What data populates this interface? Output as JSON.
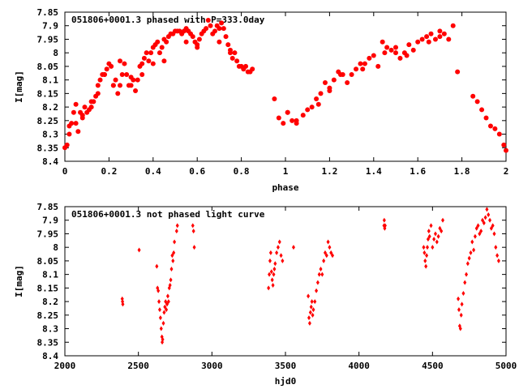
{
  "chart_data": [
    {
      "type": "scatter",
      "title": "051806+0001.3 phased with P=333.0day",
      "xlabel": "phase",
      "ylabel": "I[mag]",
      "xlim": [
        0,
        2
      ],
      "ylim": [
        8.4,
        7.85
      ],
      "y_inverted": true,
      "grid": false,
      "legend": "none",
      "x_ticks": [
        0,
        0.2,
        0.4,
        0.6,
        0.8,
        1,
        1.2,
        1.4,
        1.6,
        1.8,
        2
      ],
      "x_tick_labels": [
        "0",
        "0.2",
        "0.4",
        "0.6",
        "0.8",
        "1",
        "1.2",
        "1.4",
        "1.6",
        "1.8",
        "2"
      ],
      "y_ticks": [
        7.85,
        7.9,
        7.95,
        8,
        8.05,
        8.1,
        8.15,
        8.2,
        8.25,
        8.3,
        8.35,
        8.4
      ],
      "y_tick_labels": [
        "7.85",
        "7.9",
        "7.95",
        "8",
        "8.05",
        "8.1",
        "8.15",
        "8.2",
        "8.25",
        "8.3",
        "8.35",
        "8.4"
      ],
      "color": "#ff0000",
      "marker": "filled-circle",
      "series": [
        {
          "x": [
            0.0,
            0.01,
            0.02,
            0.03,
            0.04,
            0.05,
            0.06,
            0.07,
            0.08,
            0.09,
            0.1,
            0.11,
            0.12,
            0.13,
            0.14,
            0.15,
            0.16,
            0.17,
            0.18,
            0.19,
            0.2,
            0.21,
            0.22,
            0.23,
            0.24,
            0.25,
            0.26,
            0.27,
            0.28,
            0.29,
            0.3,
            0.31,
            0.32,
            0.33,
            0.34,
            0.35,
            0.36,
            0.37,
            0.38,
            0.39,
            0.4,
            0.41,
            0.42,
            0.43,
            0.44,
            0.45,
            0.46,
            0.47,
            0.48,
            0.49,
            0.5,
            0.51,
            0.52,
            0.53,
            0.54,
            0.55,
            0.56,
            0.57,
            0.58,
            0.59,
            0.6,
            0.61,
            0.62,
            0.63,
            0.64,
            0.65,
            0.66,
            0.67,
            0.68,
            0.69,
            0.7,
            0.71,
            0.72,
            0.73,
            0.74,
            0.75,
            0.76,
            0.77,
            0.78,
            0.79,
            0.8,
            0.81,
            0.82,
            0.83,
            0.84,
            0.85,
            0.02,
            0.05,
            0.08,
            0.12,
            0.15,
            0.18,
            0.22,
            0.25,
            0.3,
            0.35,
            0.4,
            0.45,
            0.55,
            0.6,
            0.7,
            0.75,
            0.95,
            0.97,
            0.99,
            1.01,
            1.03,
            1.05,
            1.08,
            1.1,
            1.12,
            1.14,
            1.16,
            1.18,
            1.2,
            1.22,
            1.24,
            1.26,
            1.28,
            1.3,
            1.32,
            1.34,
            1.36,
            1.38,
            1.4,
            1.42,
            1.44,
            1.46,
            1.48,
            1.5,
            1.52,
            1.54,
            1.56,
            1.58,
            1.6,
            1.62,
            1.64,
            1.66,
            1.68,
            1.7,
            1.72,
            1.74,
            1.76,
            1.78,
            1.85,
            1.87,
            1.89,
            1.91,
            1.93,
            1.95,
            1.97,
            1.99,
            2.0,
            1.01,
            1.05,
            1.15,
            1.2,
            1.25,
            1.35,
            1.45,
            1.5,
            1.55,
            1.65,
            1.7
          ],
          "y": [
            8.35,
            8.34,
            8.3,
            8.26,
            8.22,
            8.26,
            8.29,
            8.22,
            8.24,
            8.2,
            8.22,
            8.21,
            8.2,
            8.18,
            8.16,
            8.12,
            8.1,
            8.08,
            8.08,
            8.06,
            8.04,
            8.05,
            8.12,
            8.1,
            8.15,
            8.12,
            8.08,
            8.04,
            8.08,
            8.12,
            8.09,
            8.1,
            8.14,
            8.1,
            8.05,
            8.04,
            8.02,
            8.0,
            8.03,
            8.0,
            7.98,
            7.97,
            7.96,
            8.0,
            7.98,
            7.95,
            7.96,
            7.94,
            7.93,
            7.93,
            7.92,
            7.92,
            7.92,
            7.93,
            7.92,
            7.91,
            7.92,
            7.93,
            7.94,
            7.96,
            7.97,
            7.95,
            7.93,
            7.92,
            7.91,
            7.88,
            7.9,
            7.93,
            7.92,
            7.9,
            7.91,
            7.89,
            7.91,
            7.94,
            7.97,
            8.0,
            8.02,
            8.0,
            8.03,
            8.05,
            8.05,
            8.06,
            8.05,
            8.07,
            8.07,
            8.06,
            8.27,
            8.19,
            8.23,
            8.18,
            8.15,
            8.08,
            8.12,
            8.03,
            8.12,
            8.08,
            8.04,
            8.03,
            7.96,
            7.98,
            7.96,
            7.99,
            8.17,
            8.24,
            8.26,
            8.22,
            8.25,
            8.26,
            8.23,
            8.21,
            8.2,
            8.17,
            8.15,
            8.11,
            8.13,
            8.1,
            8.07,
            8.08,
            8.11,
            8.08,
            8.06,
            8.04,
            8.04,
            8.02,
            8.01,
            8.05,
            7.96,
            7.98,
            7.99,
            8.0,
            8.02,
            8.0,
            7.97,
            7.99,
            7.96,
            7.95,
            7.94,
            7.93,
            7.95,
            7.94,
            7.93,
            7.95,
            7.9,
            8.07,
            8.16,
            8.18,
            8.21,
            8.24,
            8.27,
            8.28,
            8.3,
            8.34,
            8.36,
            8.22,
            8.25,
            8.19,
            8.14,
            8.08,
            8.06,
            8.0,
            7.98,
            8.01,
            7.96,
            7.92
          ]
        }
      ]
    },
    {
      "type": "scatter",
      "title": "051806+0001.3 not phased light curve",
      "xlabel": "hjd0",
      "ylabel": "I[mag]",
      "xlim": [
        2000,
        5000
      ],
      "ylim": [
        8.4,
        7.85
      ],
      "y_inverted": true,
      "grid": false,
      "legend": "none",
      "x_ticks": [
        2000,
        2500,
        3000,
        3500,
        4000,
        4500,
        5000
      ],
      "x_tick_labels": [
        "2000",
        "2500",
        "3000",
        "3500",
        "4000",
        "4500",
        "5000"
      ],
      "y_ticks": [
        7.85,
        7.9,
        7.95,
        8,
        8.05,
        8.1,
        8.15,
        8.2,
        8.25,
        8.3,
        8.35,
        8.4
      ],
      "y_tick_labels": [
        "7.85",
        "7.9",
        "7.95",
        "8",
        "8.05",
        "8.1",
        "8.15",
        "8.2",
        "8.25",
        "8.3",
        "8.35",
        "8.4"
      ],
      "color": "#ff0000",
      "marker": "diamond",
      "series": [
        {
          "x": [
            2390,
            2392,
            2394,
            2505,
            2625,
            2630,
            2635,
            2640,
            2645,
            2650,
            2655,
            2660,
            2662,
            2665,
            2670,
            2675,
            2680,
            2685,
            2690,
            2695,
            2700,
            2705,
            2710,
            2715,
            2720,
            2725,
            2730,
            2735,
            2740,
            2745,
            2760,
            2765,
            2870,
            2875,
            2880,
            3385,
            3390,
            3395,
            3400,
            3405,
            3410,
            3415,
            3420,
            3425,
            3430,
            3440,
            3450,
            3460,
            3470,
            3480,
            3555,
            3655,
            3660,
            3665,
            3670,
            3675,
            3680,
            3685,
            3690,
            3700,
            3710,
            3720,
            3730,
            3740,
            3750,
            3760,
            3770,
            3780,
            3790,
            3800,
            3810,
            3820,
            4170,
            4172,
            4175,
            4178,
            4440,
            4445,
            4450,
            4455,
            4460,
            4465,
            4470,
            4475,
            4480,
            4490,
            4500,
            4510,
            4520,
            4530,
            4540,
            4550,
            4560,
            4570,
            4675,
            4680,
            4685,
            4690,
            4695,
            4700,
            4710,
            4720,
            4730,
            4740,
            4750,
            4760,
            4770,
            4780,
            4790,
            4800,
            4810,
            4820,
            4830,
            4840,
            4850,
            4860,
            4870,
            4880,
            4890,
            4900,
            4910,
            4920,
            4930,
            4940,
            4950
          ],
          "y": [
            8.19,
            8.2,
            8.21,
            8.01,
            8.07,
            8.15,
            8.16,
            8.2,
            8.23,
            8.26,
            8.3,
            8.33,
            8.35,
            8.34,
            8.28,
            8.24,
            8.22,
            8.2,
            8.23,
            8.21,
            8.18,
            8.2,
            8.15,
            8.14,
            8.12,
            8.08,
            8.03,
            8.05,
            8.02,
            7.98,
            7.94,
            7.92,
            7.92,
            7.94,
            8.0,
            8.15,
            8.1,
            8.05,
            8.02,
            8.09,
            8.12,
            8.14,
            8.1,
            8.08,
            8.06,
            8.02,
            8.0,
            7.98,
            8.03,
            8.05,
            8.0,
            8.18,
            8.26,
            8.28,
            8.24,
            8.22,
            8.2,
            8.25,
            8.23,
            8.2,
            8.16,
            8.13,
            8.1,
            8.08,
            8.1,
            8.05,
            8.02,
            8.03,
            7.98,
            8.0,
            8.02,
            8.03,
            7.92,
            7.9,
            7.93,
            7.92,
            8.0,
            8.02,
            8.05,
            8.07,
            8.03,
            8.0,
            7.97,
            7.94,
            7.96,
            7.92,
            8.0,
            7.97,
            7.95,
            7.98,
            7.96,
            7.93,
            7.94,
            7.9,
            8.19,
            8.23,
            8.29,
            8.3,
            8.25,
            8.21,
            8.17,
            8.13,
            8.1,
            8.06,
            8.04,
            8.02,
            7.98,
            8.01,
            7.96,
            7.93,
            7.92,
            7.95,
            7.94,
            7.9,
            7.91,
            7.89,
            7.86,
            7.88,
            7.9,
            7.93,
            7.92,
            7.95,
            8.0,
            8.03,
            8.05
          ]
        }
      ]
    }
  ]
}
